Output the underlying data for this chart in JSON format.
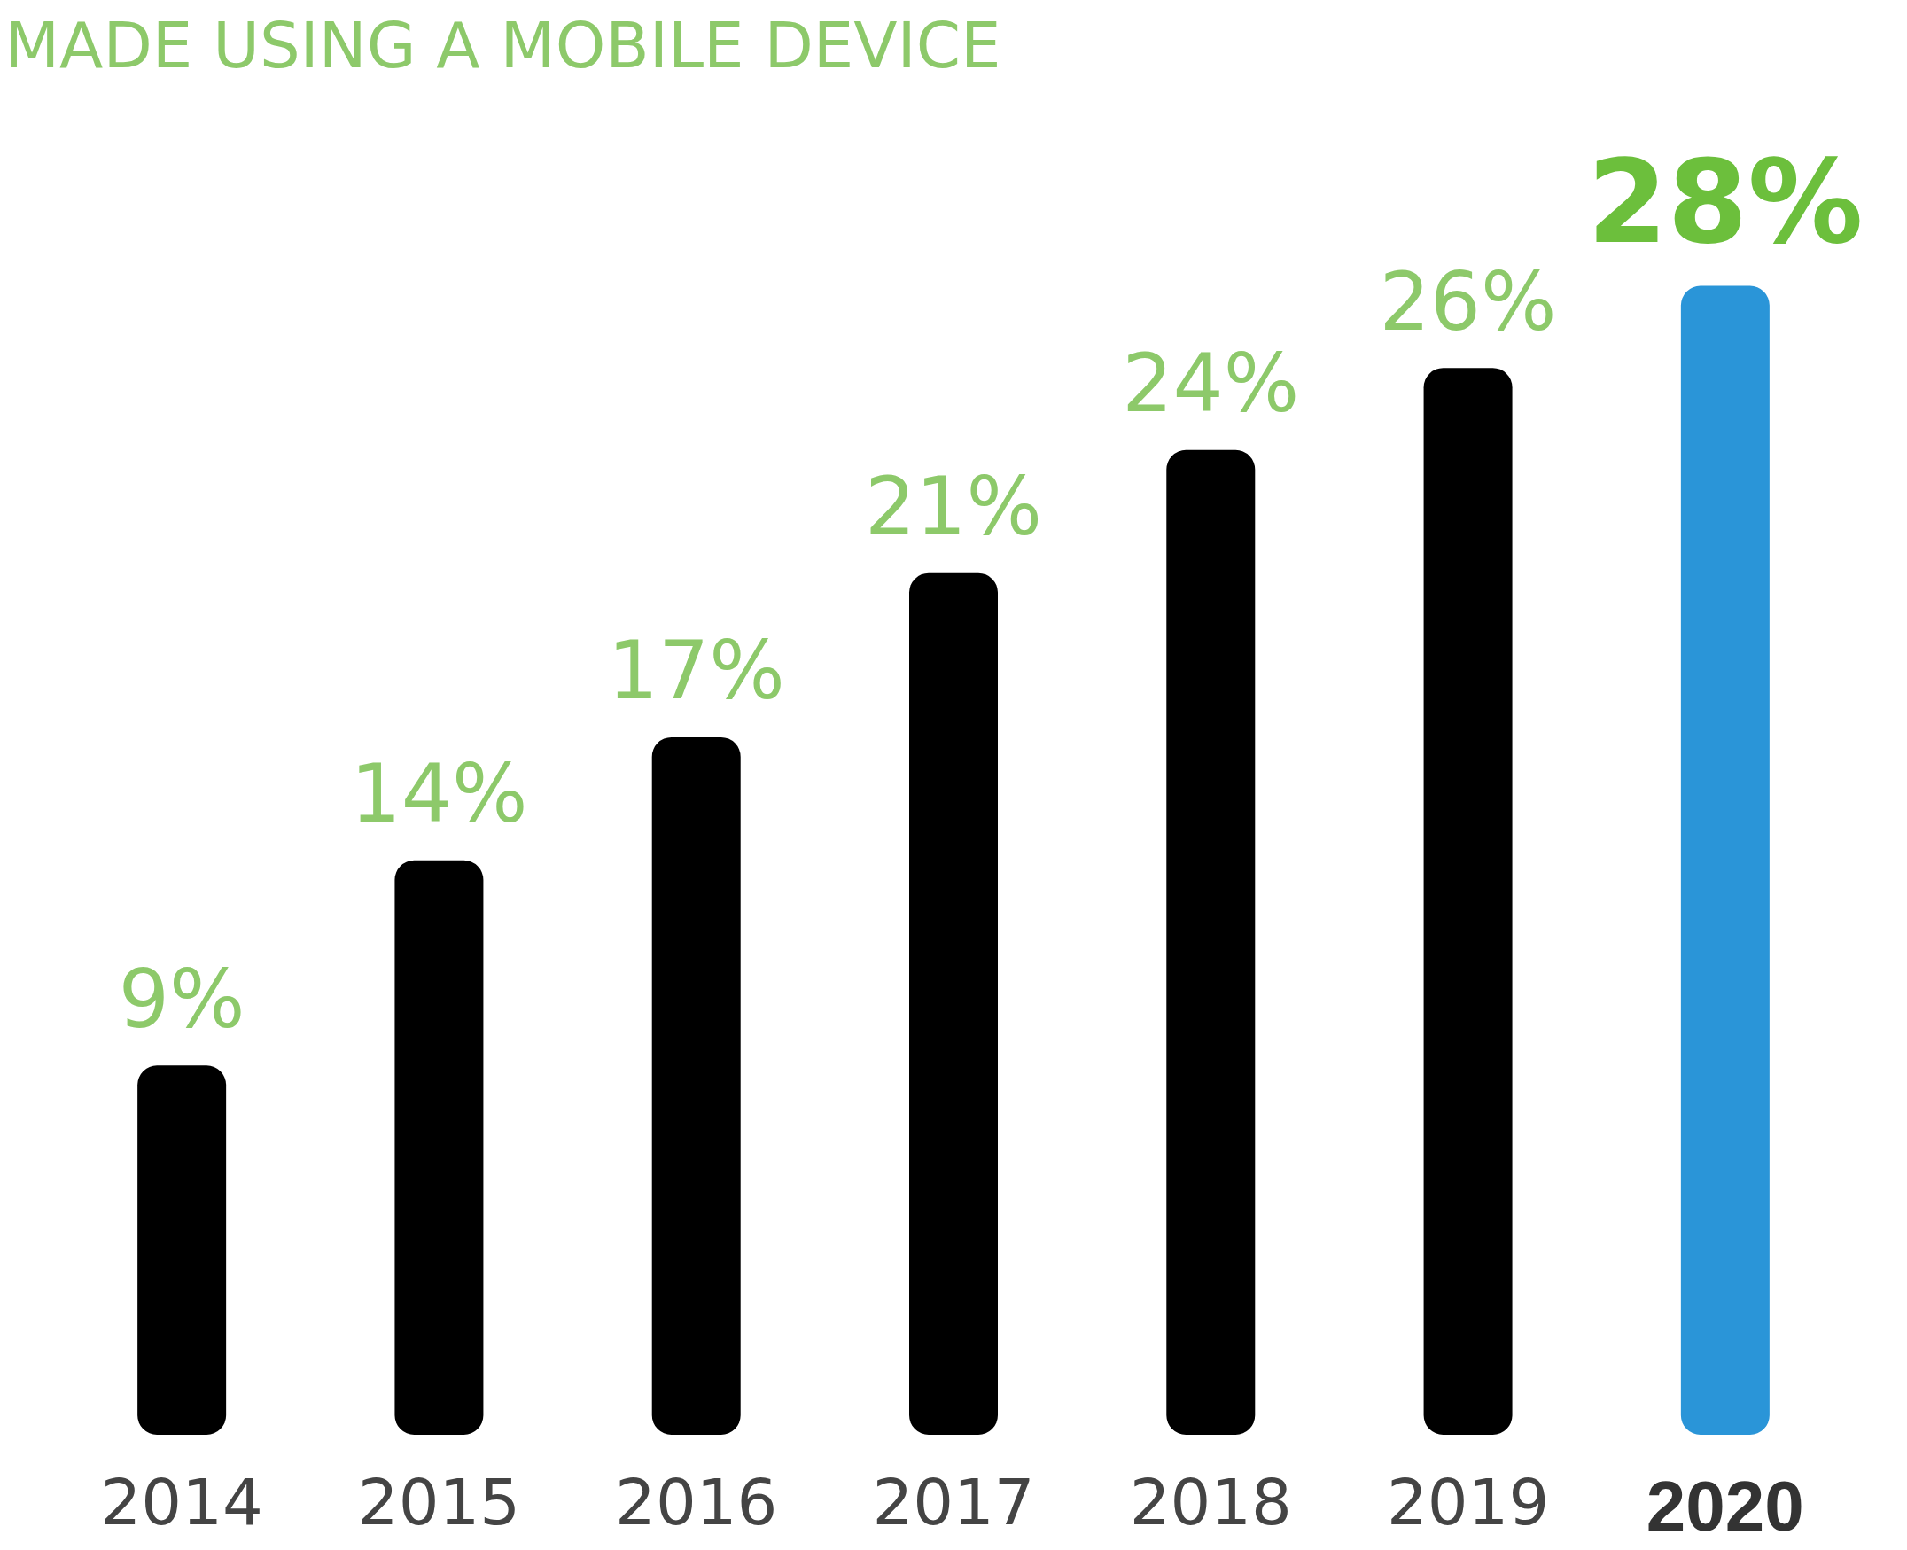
{
  "chart_data": {
    "type": "bar",
    "title": "MADE USING A MOBILE DEVICE",
    "categories": [
      "2014",
      "2015",
      "2016",
      "2017",
      "2018",
      "2019",
      "2020"
    ],
    "values": [
      9,
      14,
      17,
      21,
      24,
      26,
      28
    ],
    "value_labels": [
      "9%",
      "14%",
      "17%",
      "21%",
      "24%",
      "26%",
      "28%"
    ],
    "colors": [
      "#000000",
      "#000000",
      "#000000",
      "#000000",
      "#000000",
      "#000000",
      "#2a95d8"
    ]
  }
}
